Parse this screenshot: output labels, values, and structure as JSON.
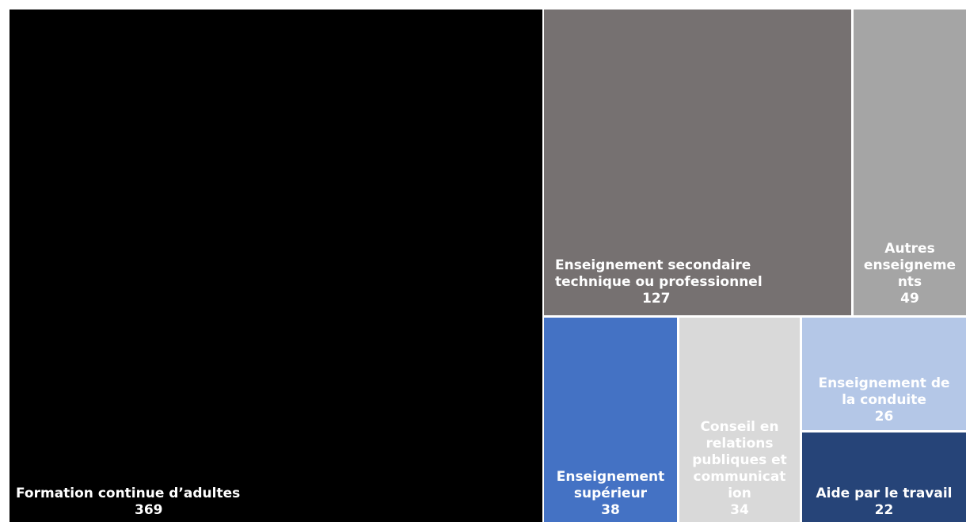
{
  "chart_data": {
    "type": "treemap",
    "items": [
      {
        "label": "Formation continue d’adultes",
        "value": 369,
        "color": "#000000"
      },
      {
        "label": "Enseignement secondaire\ntechnique ou professionnel",
        "value": 127,
        "color": "#767171"
      },
      {
        "label": "Autres\nenseigneme\nnts",
        "value": 49,
        "color": "#a5a5a5"
      },
      {
        "label": "Enseignement\nsupérieur",
        "value": 38,
        "color": "#4472c4"
      },
      {
        "label": "Conseil en\nrelations\npubliques et\ncommunicat\nion",
        "value": 34,
        "color": "#d9d9d9"
      },
      {
        "label": "Enseignement de\nla conduite",
        "value": 26,
        "color": "#b4c7e7"
      },
      {
        "label": "Aide par le travail",
        "value": 22,
        "color": "#264478"
      }
    ]
  }
}
